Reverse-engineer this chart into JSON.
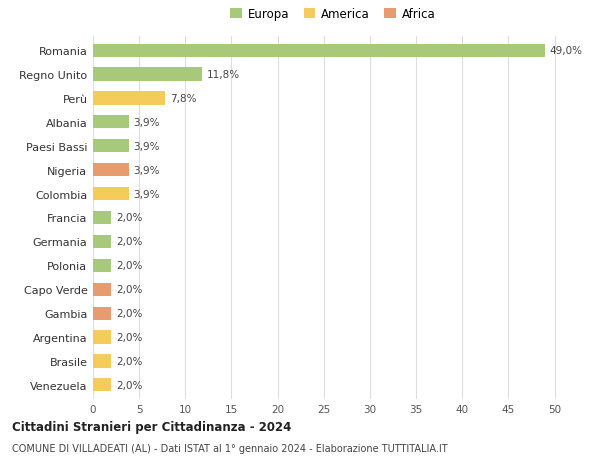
{
  "countries": [
    "Venezuela",
    "Brasile",
    "Argentina",
    "Gambia",
    "Capo Verde",
    "Polonia",
    "Germania",
    "Francia",
    "Colombia",
    "Nigeria",
    "Paesi Bassi",
    "Albania",
    "Perù",
    "Regno Unito",
    "Romania"
  ],
  "values": [
    2.0,
    2.0,
    2.0,
    2.0,
    2.0,
    2.0,
    2.0,
    2.0,
    3.9,
    3.9,
    3.9,
    3.9,
    7.8,
    11.8,
    49.0
  ],
  "colors": [
    "#f5cb5c",
    "#f5cb5c",
    "#f5cb5c",
    "#e89c6e",
    "#e89c6e",
    "#a8c87a",
    "#a8c87a",
    "#a8c87a",
    "#f5cb5c",
    "#e89c6e",
    "#a8c87a",
    "#a8c87a",
    "#f5cb5c",
    "#a8c87a",
    "#a8c87a"
  ],
  "labels": [
    "2,0%",
    "2,0%",
    "2,0%",
    "2,0%",
    "2,0%",
    "2,0%",
    "2,0%",
    "2,0%",
    "3,9%",
    "3,9%",
    "3,9%",
    "3,9%",
    "7,8%",
    "11,8%",
    "49,0%"
  ],
  "legend": [
    {
      "label": "Europa",
      "color": "#a8c87a"
    },
    {
      "label": "America",
      "color": "#f5cb5c"
    },
    {
      "label": "Africa",
      "color": "#e89c6e"
    }
  ],
  "title": "Cittadini Stranieri per Cittadinanza - 2024",
  "subtitle": "COMUNE DI VILLADEATI (AL) - Dati ISTAT al 1° gennaio 2024 - Elaborazione TUTTITALIA.IT",
  "xlim": [
    0,
    52
  ],
  "xticks": [
    0,
    5,
    10,
    15,
    20,
    25,
    30,
    35,
    40,
    45,
    50
  ],
  "background_color": "#ffffff",
  "grid_color": "#dddddd",
  "bar_height": 0.55
}
